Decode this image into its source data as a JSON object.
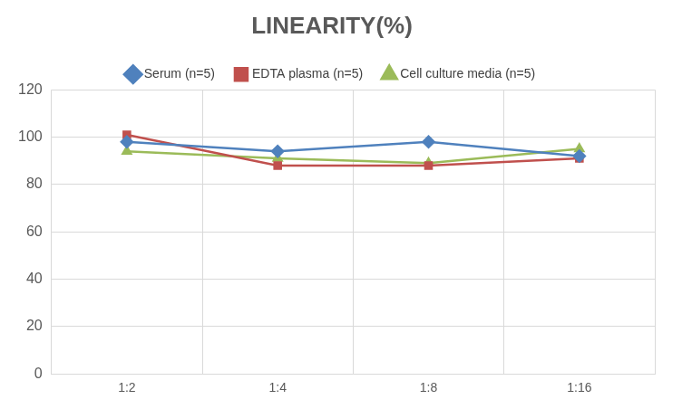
{
  "chart_data": {
    "type": "line",
    "title": "LINEARITY(%)",
    "categories": [
      "1:2",
      "1:4",
      "1:8",
      "1:16"
    ],
    "series": [
      {
        "name": "Serum (n=5)",
        "color": "#4F81BD",
        "marker": "diamond",
        "values": [
          98,
          94,
          98,
          92
        ]
      },
      {
        "name": "EDTA plasma (n=5)",
        "color": "#C0504D",
        "marker": "square",
        "values": [
          101,
          88,
          88,
          91
        ]
      },
      {
        "name": "Cell culture media (n=5)",
        "color": "#9BBB59",
        "marker": "triangle",
        "values": [
          94,
          91,
          89,
          95
        ]
      }
    ],
    "ylim": [
      0,
      120
    ],
    "yticks": [
      0,
      20,
      40,
      60,
      80,
      100,
      120
    ],
    "grid": true,
    "legend": "top"
  }
}
